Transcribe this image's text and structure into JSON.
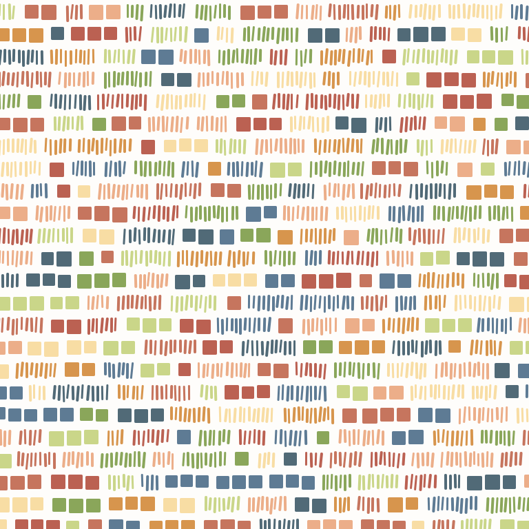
{
  "pattern": {
    "style": "hand-painted rows of small squares and vertical dashes",
    "palette": {
      "red": "#b4503f",
      "green": "#7d9c48",
      "blue": "#4d6d88",
      "dark_teal": "#3e5a68",
      "orange": "#d3893a",
      "peach": "#eaa57c",
      "cream": "#f7d99a",
      "light_green": "#c4d27c",
      "rust": "#c0664d"
    }
  }
}
